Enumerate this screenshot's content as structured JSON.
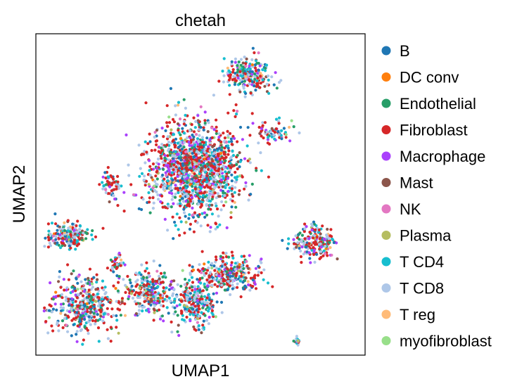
{
  "chart_data": {
    "type": "scatter",
    "title": "chetah",
    "xlabel": "UMAP1",
    "ylabel": "UMAP2",
    "xlim": [
      0,
      100
    ],
    "ylim": [
      0,
      100
    ],
    "grid": false,
    "ticks": false,
    "legend_position": "right",
    "series": [
      {
        "name": "B",
        "color": "#1f77b4"
      },
      {
        "name": "DC conv",
        "color": "#ff7f0e"
      },
      {
        "name": "Endothelial",
        "color": "#279e68"
      },
      {
        "name": "Fibroblast",
        "color": "#d62728"
      },
      {
        "name": "Macrophage",
        "color": "#aa40fc"
      },
      {
        "name": "Mast",
        "color": "#8c564b"
      },
      {
        "name": "NK",
        "color": "#e377c2"
      },
      {
        "name": "Plasma",
        "color": "#b5bd61"
      },
      {
        "name": "T CD4",
        "color": "#17becf"
      },
      {
        "name": "T CD8",
        "color": "#aec7e8"
      },
      {
        "name": "T reg",
        "color": "#ffbb78"
      },
      {
        "name": "myofibroblast",
        "color": "#98df8a"
      }
    ],
    "clusters": [
      {
        "center": [
          64.5,
          87.5
        ],
        "spread": [
          6.5,
          5.0
        ],
        "n": 220
      },
      {
        "center": [
          73.0,
          69.5
        ],
        "spread": [
          5.0,
          3.0
        ],
        "n": 70
      },
      {
        "center": [
          48.0,
          58.0
        ],
        "spread": [
          13.0,
          13.0
        ],
        "n": 1400
      },
      {
        "center": [
          23.0,
          53.0
        ],
        "spread": [
          3.0,
          4.5
        ],
        "n": 60
      },
      {
        "center": [
          10.0,
          37.0
        ],
        "spread": [
          6.5,
          3.5
        ],
        "n": 200
      },
      {
        "center": [
          15.0,
          15.5
        ],
        "spread": [
          9.0,
          8.0
        ],
        "n": 420
      },
      {
        "center": [
          34.5,
          19.5
        ],
        "spread": [
          6.5,
          6.0
        ],
        "n": 260
      },
      {
        "center": [
          48.5,
          16.0
        ],
        "spread": [
          5.5,
          6.5
        ],
        "n": 260
      },
      {
        "center": [
          58.5,
          25.0
        ],
        "spread": [
          9.5,
          5.0
        ],
        "n": 300
      },
      {
        "center": [
          85.0,
          35.0
        ],
        "spread": [
          6.0,
          5.0
        ],
        "n": 200
      },
      {
        "center": [
          24.5,
          28.0
        ],
        "spread": [
          2.5,
          3.0
        ],
        "n": 40
      },
      {
        "center": [
          79.5,
          4.5
        ],
        "spread": [
          0.7,
          1.0
        ],
        "n": 18
      },
      {
        "center": [
          5.0,
          14.0
        ],
        "spread": [
          1.5,
          0.6
        ],
        "n": 8
      }
    ]
  }
}
